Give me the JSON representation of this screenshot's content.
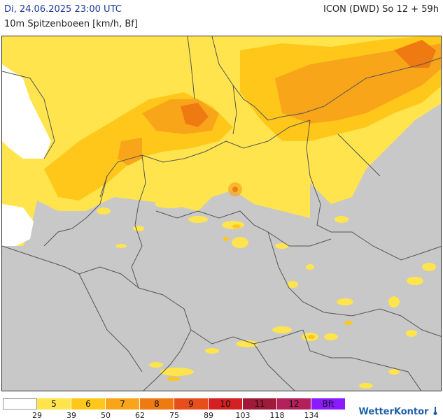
{
  "header": {
    "datetime": "Di, 24.06.2025 23:00 UTC",
    "model": "ICON (DWD) So 12 + 59h",
    "parameter": "10m Spitzenboeen [km/h, Bf]"
  },
  "legend": {
    "classes": [
      {
        "label": "",
        "color": "#ffffff"
      },
      {
        "label": "5",
        "color": "#ffe44d"
      },
      {
        "label": "6",
        "color": "#ffc71a"
      },
      {
        "label": "7",
        "color": "#f9a51a"
      },
      {
        "label": "8",
        "color": "#f07a12"
      },
      {
        "label": "9",
        "color": "#e84e1a"
      },
      {
        "label": "10",
        "color": "#d42020"
      },
      {
        "label": "11",
        "color": "#a01a3a"
      },
      {
        "label": "12",
        "color": "#b4205a"
      },
      {
        "label": "Bft",
        "color": "#8a1aff"
      }
    ],
    "ticks": [
      "29",
      "39",
      "50",
      "62",
      "75",
      "89",
      "103",
      "118",
      "134"
    ]
  },
  "brand": {
    "name": "WetterKontor",
    "icon": "thermometer-icon"
  },
  "colors": {
    "land_background": "#c8c8c8",
    "calm_sea": "#ffffff",
    "border_line": "#555555"
  }
}
